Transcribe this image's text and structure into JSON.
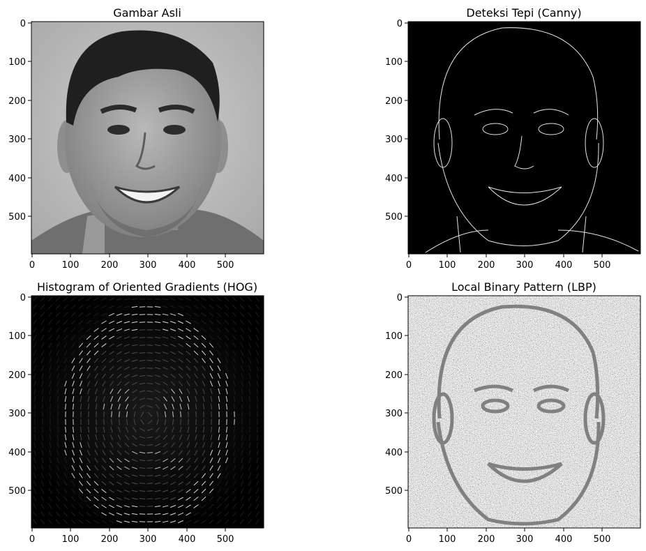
{
  "chart_data": [
    {
      "type": "image",
      "title": "Gambar Asli",
      "xticks": [
        "0",
        "100",
        "200",
        "300",
        "400",
        "500"
      ],
      "yticks": [
        "0",
        "100",
        "200",
        "300",
        "400",
        "500"
      ],
      "xlim": [
        0,
        600
      ],
      "ylim": [
        600,
        0
      ],
      "colormap": "gray",
      "content": "grayscale photo of a smiling man"
    },
    {
      "type": "image",
      "title": "Deteksi Tepi (Canny)",
      "xticks": [
        "0",
        "100",
        "200",
        "300",
        "400",
        "500"
      ],
      "yticks": [
        "0",
        "100",
        "200",
        "300",
        "400",
        "500"
      ],
      "xlim": [
        0,
        600
      ],
      "ylim": [
        600,
        0
      ],
      "colormap": "gray",
      "content": "canny edge map, white edges on black"
    },
    {
      "type": "image",
      "title": "Histogram of Oriented Gradients (HOG)",
      "xticks": [
        "0",
        "100",
        "200",
        "300",
        "400",
        "500"
      ],
      "yticks": [
        "0",
        "100",
        "200",
        "300",
        "400",
        "500"
      ],
      "xlim": [
        0,
        600
      ],
      "ylim": [
        600,
        0
      ],
      "colormap": "gray",
      "content": "HOG visualization, oriented gradient glyphs on black"
    },
    {
      "type": "image",
      "title": "Local Binary Pattern (LBP)",
      "xticks": [
        "0",
        "100",
        "200",
        "300",
        "400",
        "500"
      ],
      "yticks": [
        "0",
        "100",
        "200",
        "300",
        "400",
        "500"
      ],
      "xlim": [
        0,
        600
      ],
      "ylim": [
        600,
        0
      ],
      "colormap": "gray",
      "content": "LBP texture map, noisy gray"
    }
  ]
}
